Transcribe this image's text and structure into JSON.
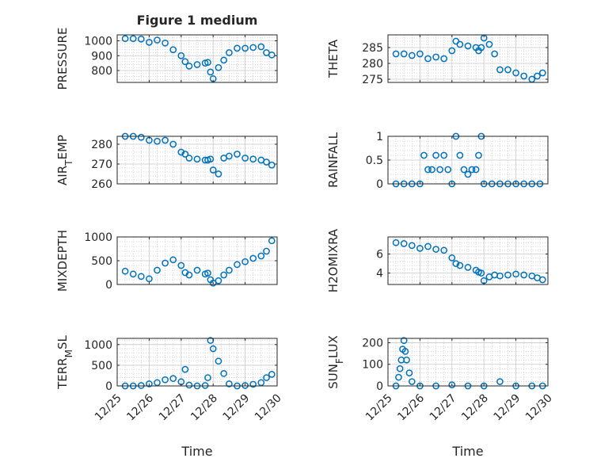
{
  "figure": {
    "title": "Figure 1 medium"
  },
  "colors": {
    "marker": "#0072BD",
    "axis": "#262626",
    "grid": "#c8c8c8",
    "background": "#ffffff"
  },
  "chart_data": [
    {
      "type": "scatter",
      "marker": "circle-open",
      "grid": true,
      "minor_grid": true,
      "title": "Figure 1 medium",
      "xlabel": "",
      "ylabel": "PRESSURE",
      "xlim": [
        "12/25",
        "12/30"
      ],
      "ylim": [
        720,
        1040
      ],
      "yticks": [
        800,
        900,
        1000
      ],
      "x": [
        "12/25 06:00",
        "12/25 12:00",
        "12/25 18:00",
        "12/26 00:00",
        "12/26 06:00",
        "12/26 12:00",
        "12/26 18:00",
        "12/27 00:00",
        "12/27 03:00",
        "12/27 06:00",
        "12/27 12:00",
        "12/27 18:00",
        "12/27 20:00",
        "12/27 22:00",
        "12/28 00:00",
        "12/28 04:00",
        "12/28 08:00",
        "12/28 12:00",
        "12/28 18:00",
        "12/29 00:00",
        "12/29 06:00",
        "12/29 12:00",
        "12/29 16:00",
        "12/29 20:00"
      ],
      "y": [
        1015,
        1015,
        1012,
        990,
        1005,
        985,
        940,
        900,
        860,
        830,
        840,
        850,
        855,
        790,
        745,
        820,
        870,
        920,
        950,
        950,
        955,
        960,
        920,
        905
      ]
    },
    {
      "type": "scatter",
      "marker": "circle-open",
      "grid": true,
      "minor_grid": true,
      "xlabel": "",
      "ylabel": "THETA",
      "xlim": [
        "12/25",
        "12/30"
      ],
      "ylim": [
        274,
        289
      ],
      "yticks": [
        275,
        280,
        285
      ],
      "x": [
        "12/25 06:00",
        "12/25 12:00",
        "12/25 18:00",
        "12/26 00:00",
        "12/26 06:00",
        "12/26 12:00",
        "12/26 18:00",
        "12/27 00:00",
        "12/27 03:00",
        "12/27 06:00",
        "12/27 12:00",
        "12/27 18:00",
        "12/27 20:00",
        "12/27 22:00",
        "12/28 00:00",
        "12/28 04:00",
        "12/28 08:00",
        "12/28 12:00",
        "12/28 18:00",
        "12/29 00:00",
        "12/29 06:00",
        "12/29 12:00",
        "12/29 16:00",
        "12/29 20:00"
      ],
      "y": [
        283,
        283,
        282.5,
        283,
        281.5,
        282,
        281.5,
        284,
        287,
        286,
        285.5,
        285,
        284,
        285,
        288,
        286,
        283,
        278,
        278,
        277,
        276,
        275,
        276,
        277
      ]
    },
    {
      "type": "scatter",
      "marker": "circle-open",
      "grid": true,
      "minor_grid": true,
      "xlabel": "",
      "ylabel": "AIR_TEMP",
      "xlim": [
        "12/25",
        "12/30"
      ],
      "ylim": [
        260,
        284
      ],
      "yticks": [
        260,
        270,
        280
      ],
      "x": [
        "12/25 06:00",
        "12/25 12:00",
        "12/25 18:00",
        "12/26 00:00",
        "12/26 06:00",
        "12/26 12:00",
        "12/26 18:00",
        "12/27 00:00",
        "12/27 03:00",
        "12/27 06:00",
        "12/27 12:00",
        "12/27 18:00",
        "12/27 20:00",
        "12/27 22:00",
        "12/28 00:00",
        "12/28 04:00",
        "12/28 08:00",
        "12/28 12:00",
        "12/28 18:00",
        "12/29 00:00",
        "12/29 06:00",
        "12/29 12:00",
        "12/29 16:00",
        "12/29 20:00"
      ],
      "y": [
        284,
        284,
        283.5,
        282,
        281.5,
        282,
        280,
        276,
        275,
        273,
        272.5,
        272,
        272,
        272.5,
        267,
        265,
        273,
        274,
        275,
        273,
        272.5,
        272,
        271,
        269.5
      ]
    },
    {
      "type": "scatter",
      "marker": "circle-open",
      "grid": true,
      "minor_grid": true,
      "xlabel": "",
      "ylabel": "RAINFALL",
      "xlim": [
        "12/25",
        "12/30"
      ],
      "ylim": [
        0,
        1
      ],
      "yticks": [
        0,
        0.5,
        1
      ],
      "x": [
        "12/25 06:00",
        "12/25 12:00",
        "12/25 18:00",
        "12/26 00:00",
        "12/26 03:00",
        "12/26 06:00",
        "12/26 09:00",
        "12/26 12:00",
        "12/26 15:00",
        "12/26 18:00",
        "12/26 21:00",
        "12/27 00:00",
        "12/27 03:00",
        "12/27 06:00",
        "12/27 09:00",
        "12/27 12:00",
        "12/27 15:00",
        "12/27 18:00",
        "12/27 20:00",
        "12/27 22:00",
        "12/28 00:00",
        "12/28 06:00",
        "12/28 12:00",
        "12/28 18:00",
        "12/29 00:00",
        "12/29 06:00",
        "12/29 12:00",
        "12/29 18:00"
      ],
      "y": [
        0,
        0,
        0,
        0,
        0.6,
        0.3,
        0.3,
        0.6,
        0.3,
        0.6,
        0.3,
        0,
        1,
        0.6,
        0.3,
        0.2,
        0.3,
        0.3,
        0.6,
        1,
        0,
        0,
        0,
        0,
        0,
        0,
        0,
        0
      ]
    },
    {
      "type": "scatter",
      "marker": "circle-open",
      "grid": true,
      "minor_grid": true,
      "xlabel": "",
      "ylabel": "MIXDEPTH",
      "xlim": [
        "12/25",
        "12/30"
      ],
      "ylim": [
        0,
        1000
      ],
      "yticks": [
        0,
        500,
        1000
      ],
      "x": [
        "12/25 06:00",
        "12/25 12:00",
        "12/25 18:00",
        "12/26 00:00",
        "12/26 06:00",
        "12/26 12:00",
        "12/26 18:00",
        "12/27 00:00",
        "12/27 03:00",
        "12/27 06:00",
        "12/27 12:00",
        "12/27 18:00",
        "12/27 20:00",
        "12/27 22:00",
        "12/28 00:00",
        "12/28 04:00",
        "12/28 08:00",
        "12/28 12:00",
        "12/28 18:00",
        "12/29 00:00",
        "12/29 06:00",
        "12/29 12:00",
        "12/29 16:00",
        "12/29 20:00"
      ],
      "y": [
        280,
        220,
        170,
        120,
        300,
        450,
        520,
        400,
        250,
        200,
        300,
        220,
        240,
        100,
        30,
        80,
        200,
        300,
        420,
        480,
        550,
        600,
        700,
        920
      ]
    },
    {
      "type": "scatter",
      "marker": "circle-open",
      "grid": true,
      "minor_grid": true,
      "xlabel": "",
      "ylabel": "H2OMIXRA",
      "xlim": [
        "12/25",
        "12/30"
      ],
      "ylim": [
        2.8,
        7.8
      ],
      "yticks": [
        4,
        6
      ],
      "x": [
        "12/25 06:00",
        "12/25 12:00",
        "12/25 18:00",
        "12/26 00:00",
        "12/26 06:00",
        "12/26 12:00",
        "12/26 18:00",
        "12/27 00:00",
        "12/27 03:00",
        "12/27 06:00",
        "12/27 12:00",
        "12/27 18:00",
        "12/27 20:00",
        "12/27 22:00",
        "12/28 00:00",
        "12/28 04:00",
        "12/28 08:00",
        "12/28 12:00",
        "12/28 18:00",
        "12/29 00:00",
        "12/29 06:00",
        "12/29 12:00",
        "12/29 16:00",
        "12/29 20:00"
      ],
      "y": [
        7.2,
        7.1,
        6.9,
        6.6,
        6.8,
        6.5,
        6.4,
        5.6,
        5.0,
        4.8,
        4.6,
        4.3,
        4.1,
        4.0,
        3.2,
        3.6,
        3.8,
        3.7,
        3.8,
        3.9,
        3.8,
        3.7,
        3.5,
        3.3
      ]
    },
    {
      "type": "scatter",
      "marker": "circle-open",
      "grid": true,
      "minor_grid": true,
      "xlabel": "Time",
      "ylabel": "TERR_MSL",
      "xlim": [
        "12/25",
        "12/30"
      ],
      "ylim": [
        0,
        1150
      ],
      "yticks": [
        0,
        500,
        1000
      ],
      "xticks": [
        "12/25",
        "12/26",
        "12/27",
        "12/28",
        "12/29",
        "12/30"
      ],
      "x": [
        "12/25 06:00",
        "12/25 12:00",
        "12/25 18:00",
        "12/26 00:00",
        "12/26 06:00",
        "12/26 12:00",
        "12/26 18:00",
        "12/27 00:00",
        "12/27 03:00",
        "12/27 06:00",
        "12/27 12:00",
        "12/27 18:00",
        "12/27 20:00",
        "12/27 22:00",
        "12/28 00:00",
        "12/28 04:00",
        "12/28 08:00",
        "12/28 12:00",
        "12/28 18:00",
        "12/29 00:00",
        "12/29 06:00",
        "12/29 12:00",
        "12/29 16:00",
        "12/29 20:00"
      ],
      "y": [
        0,
        0,
        10,
        50,
        80,
        150,
        180,
        100,
        400,
        20,
        0,
        10,
        200,
        1100,
        900,
        600,
        300,
        50,
        0,
        10,
        40,
        80,
        200,
        280
      ]
    },
    {
      "type": "scatter",
      "marker": "circle-open",
      "grid": true,
      "minor_grid": true,
      "xlabel": "Time",
      "ylabel": "SUN_FLUX",
      "xlim": [
        "12/25",
        "12/30"
      ],
      "ylim": [
        0,
        220
      ],
      "yticks": [
        0,
        100,
        200
      ],
      "xticks": [
        "12/25",
        "12/26",
        "12/27",
        "12/28",
        "12/29",
        "12/30"
      ],
      "x": [
        "12/25 06:00",
        "12/25 08:00",
        "12/25 09:00",
        "12/25 10:00",
        "12/25 11:00",
        "12/25 12:00",
        "12/25 13:00",
        "12/25 14:00",
        "12/25 16:00",
        "12/25 18:00",
        "12/26 00:00",
        "12/26 12:00",
        "12/27 00:00",
        "12/27 12:00",
        "12/28 00:00",
        "12/28 12:00",
        "12/29 00:00",
        "12/29 12:00",
        "12/29 20:00"
      ],
      "y": [
        0,
        40,
        80,
        120,
        170,
        210,
        160,
        120,
        60,
        20,
        0,
        0,
        5,
        0,
        0,
        20,
        0,
        0,
        0
      ]
    }
  ]
}
